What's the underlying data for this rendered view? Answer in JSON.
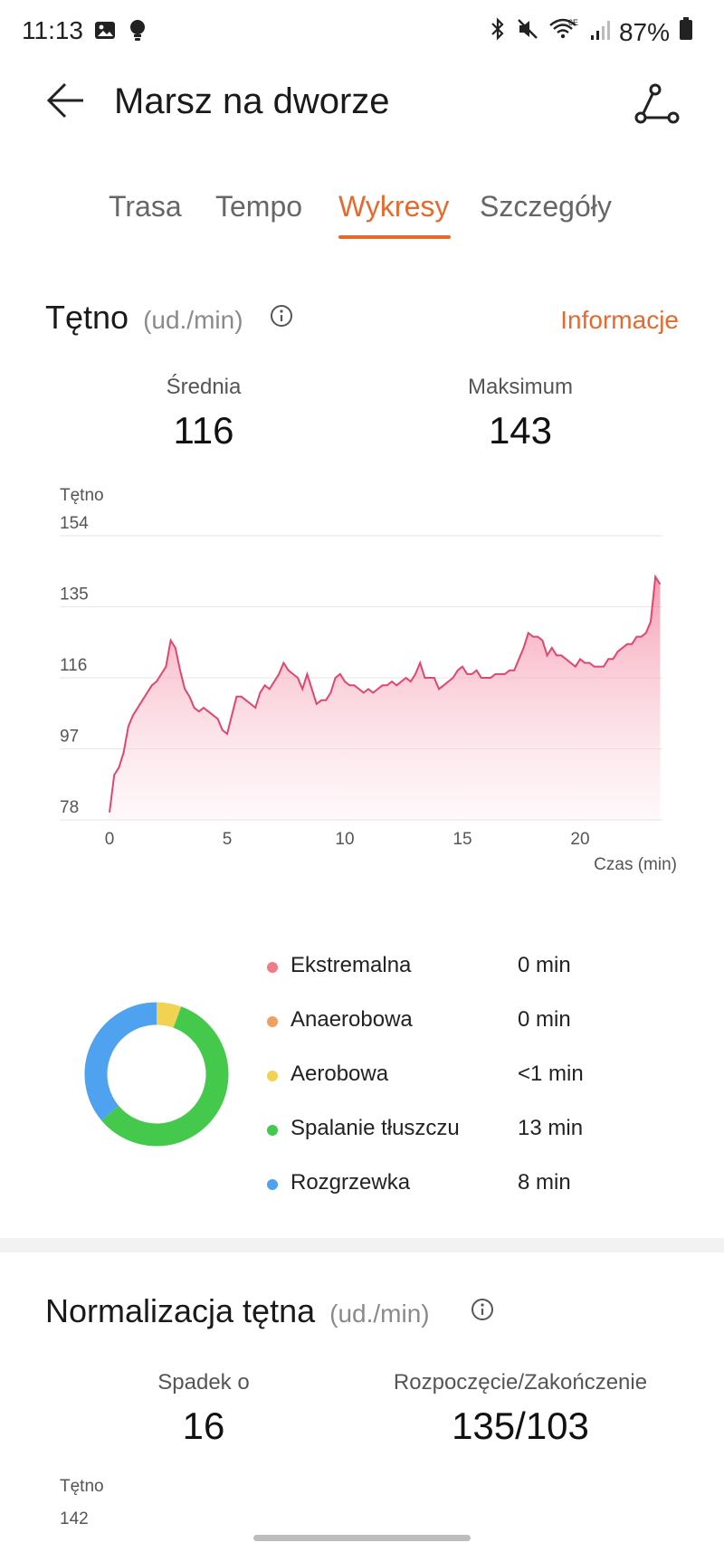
{
  "status_bar": {
    "time": "11:13",
    "battery": "87%",
    "icons": [
      "gallery-icon",
      "bulb-icon",
      "bluetooth-icon",
      "mute-icon",
      "wifi-icon",
      "signal-icon",
      "battery-icon"
    ]
  },
  "header": {
    "title": "Marsz na dworze",
    "back_icon": "arrow-left-icon",
    "route_icon": "route-icon"
  },
  "tabs": [
    {
      "label": "Trasa",
      "active": false
    },
    {
      "label": "Tempo",
      "active": false
    },
    {
      "label": "Wykresy",
      "active": true
    },
    {
      "label": "Szczegóły",
      "active": false
    }
  ],
  "heart_rate": {
    "title": "Tętno",
    "unit": "(ud./min)",
    "info_link": "Informacje",
    "avg_label": "Średnia",
    "avg_value": "116",
    "max_label": "Maksimum",
    "max_value": "143"
  },
  "chart_data": {
    "type": "area",
    "ylabel": "Tętno",
    "xlabel": "Czas (min)",
    "y_ticks": [
      "154",
      "135",
      "116",
      "97",
      "78"
    ],
    "x_ticks": [
      "0",
      "5",
      "10",
      "15",
      "20"
    ],
    "ylim": [
      78,
      154
    ],
    "xlim": [
      0,
      23.5
    ],
    "grid": true,
    "series": [
      {
        "color": "#e0466e",
        "x": [
          0,
          0.2,
          0.4,
          0.6,
          0.8,
          1.0,
          1.2,
          1.4,
          1.6,
          1.8,
          2.0,
          2.2,
          2.4,
          2.6,
          2.8,
          3.0,
          3.2,
          3.4,
          3.6,
          3.8,
          4.0,
          4.2,
          4.4,
          4.6,
          4.8,
          5.0,
          5.2,
          5.4,
          5.6,
          5.8,
          6.0,
          6.2,
          6.4,
          6.6,
          6.8,
          7.0,
          7.2,
          7.4,
          7.6,
          7.8,
          8.0,
          8.2,
          8.4,
          8.6,
          8.8,
          9.0,
          9.2,
          9.4,
          9.6,
          9.8,
          10.0,
          10.2,
          10.4,
          10.6,
          10.8,
          11.0,
          11.2,
          11.4,
          11.6,
          11.8,
          12.0,
          12.2,
          12.4,
          12.6,
          12.8,
          13.0,
          13.2,
          13.4,
          13.6,
          13.8,
          14.0,
          14.2,
          14.4,
          14.6,
          14.8,
          15.0,
          15.2,
          15.4,
          15.6,
          15.8,
          16.0,
          16.2,
          16.4,
          16.6,
          16.8,
          17.0,
          17.2,
          17.4,
          17.6,
          17.8,
          18.0,
          18.2,
          18.4,
          18.6,
          18.8,
          19.0,
          19.2,
          19.4,
          19.6,
          19.8,
          20.0,
          20.2,
          20.4,
          20.6,
          20.8,
          21.0,
          21.2,
          21.4,
          21.6,
          21.8,
          22.0,
          22.2,
          22.4,
          22.6,
          22.8,
          23.0,
          23.2,
          23.4
        ],
        "y": [
          80,
          90,
          92,
          96,
          103,
          106,
          108,
          110,
          112,
          114,
          115,
          117,
          119,
          126,
          124,
          118,
          113,
          111,
          108,
          107,
          108,
          107,
          106,
          105,
          102,
          101,
          106,
          111,
          111,
          110,
          109,
          108,
          112,
          114,
          113,
          115,
          117,
          120,
          118,
          117,
          116,
          113,
          117,
          113,
          109,
          110,
          110,
          112,
          116,
          117,
          115,
          114,
          114,
          113,
          112,
          113,
          112,
          113,
          114,
          114,
          115,
          114,
          115,
          116,
          115,
          117,
          120,
          116,
          116,
          116,
          113,
          114,
          115,
          116,
          118,
          119,
          117,
          117,
          118,
          116,
          116,
          116,
          117,
          117,
          117,
          118,
          118,
          121,
          124,
          128,
          127,
          127,
          126,
          122,
          124,
          122,
          122,
          121,
          120,
          119,
          121,
          120,
          120,
          119,
          119,
          119,
          121,
          121,
          123,
          124,
          125,
          125,
          127,
          127,
          128,
          131,
          143,
          141
        ]
      }
    ]
  },
  "zones": {
    "items": [
      {
        "name": "Ekstremalna",
        "value": "0 min",
        "color": "#f07a86"
      },
      {
        "name": "Anaerobowa",
        "value": "0 min",
        "color": "#efa060"
      },
      {
        "name": "Aerobowa",
        "value": "<1 min",
        "color": "#f2d252"
      },
      {
        "name": "Spalanie tłuszczu",
        "value": "13 min",
        "color": "#44c94c"
      },
      {
        "name": "Rozgrzewka",
        "value": "8 min",
        "color": "#4ea2ef"
      }
    ]
  },
  "normalization": {
    "title": "Normalizacja tętna",
    "unit": "(ud./min)",
    "drop_label": "Spadek o",
    "drop_value": "16",
    "startend_label": "Rozpoczęcie/Zakończenie",
    "startend_value": "135/103",
    "chart_ylabel": "Tętno",
    "chart_top_tick": "142"
  }
}
